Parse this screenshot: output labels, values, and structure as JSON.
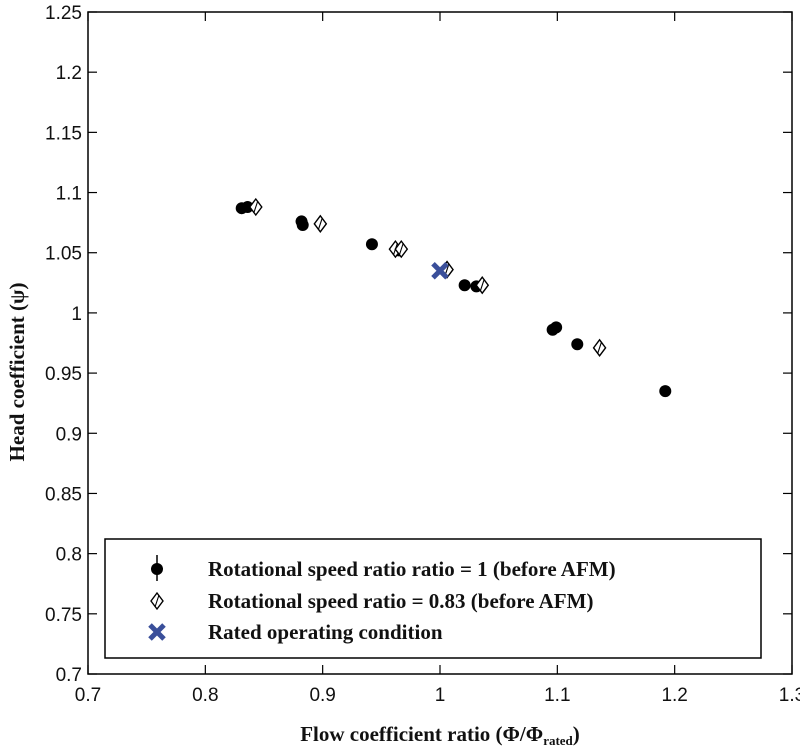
{
  "chart_data": {
    "type": "scatter",
    "xlabel": "Flow coefficient ratio (Φ/Φ",
    "xlabel_sub": "rated",
    "xlabel_close": ")",
    "ylabel": "Head coefficient (ψ)",
    "xlim": [
      0.7,
      1.3
    ],
    "ylim": [
      0.7,
      1.25
    ],
    "xticks": [
      0.7,
      0.8,
      0.9,
      1,
      1.1,
      1.2,
      1.3
    ],
    "yticks": [
      0.7,
      0.75,
      0.8,
      0.85,
      0.9,
      0.95,
      1,
      1.05,
      1.1,
      1.15,
      1.2,
      1.25
    ],
    "xtick_labels": [
      "0.7",
      "0.8",
      "0.9",
      "1",
      "1.1",
      "1.2",
      "1.3"
    ],
    "ytick_labels": [
      "0.7",
      "0.75",
      "0.8",
      "0.85",
      "0.9",
      "0.95",
      "1",
      "1.05",
      "1.1",
      "1.15",
      "1.2",
      "1.25"
    ],
    "grid": false,
    "legend_position": "bottom",
    "series": [
      {
        "name": "Rotational speed ratio ratio = 1 (before AFM)",
        "marker": "filled-circle",
        "color": "#000000",
        "points": [
          {
            "x": 0.831,
            "y": 1.087
          },
          {
            "x": 0.836,
            "y": 1.088
          },
          {
            "x": 0.882,
            "y": 1.076
          },
          {
            "x": 0.883,
            "y": 1.073
          },
          {
            "x": 0.942,
            "y": 1.057
          },
          {
            "x": 0.965,
            "y": 1.052
          },
          {
            "x": 1.021,
            "y": 1.023
          },
          {
            "x": 1.031,
            "y": 1.022
          },
          {
            "x": 1.096,
            "y": 0.986
          },
          {
            "x": 1.099,
            "y": 0.988
          },
          {
            "x": 1.117,
            "y": 0.974
          },
          {
            "x": 1.192,
            "y": 0.935
          }
        ]
      },
      {
        "name": "Rotational speed ratio = 0.83 (before AFM)",
        "marker": "open-diamond",
        "color": "#000000",
        "points": [
          {
            "x": 0.843,
            "y": 1.088
          },
          {
            "x": 0.898,
            "y": 1.074
          },
          {
            "x": 0.962,
            "y": 1.053
          },
          {
            "x": 0.967,
            "y": 1.053
          },
          {
            "x": 1.006,
            "y": 1.036
          },
          {
            "x": 1.036,
            "y": 1.023
          },
          {
            "x": 1.136,
            "y": 0.971
          }
        ]
      },
      {
        "name": "Rated operating condition",
        "marker": "x-cross",
        "color": "#3a4f9a",
        "points": [
          {
            "x": 1.0,
            "y": 1.035
          }
        ]
      }
    ]
  }
}
